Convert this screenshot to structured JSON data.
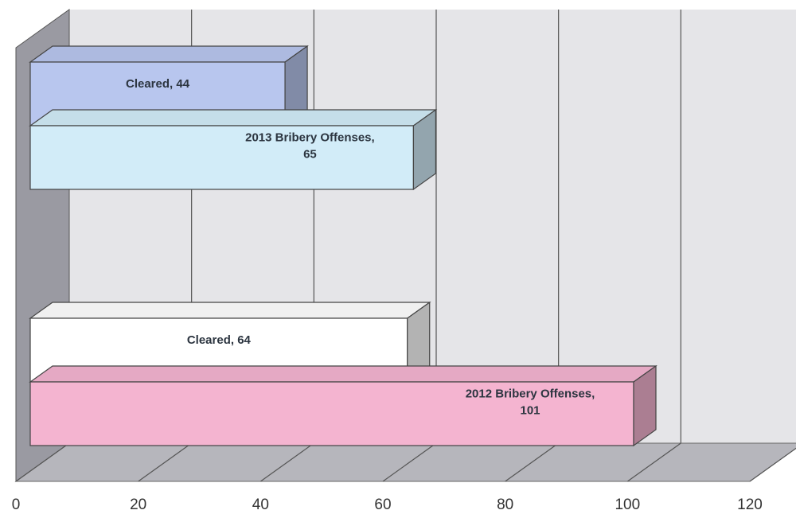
{
  "chart_data": {
    "type": "bar",
    "orientation": "horizontal",
    "three_d": true,
    "grid": true,
    "xlim": [
      0,
      120
    ],
    "x_ticks": [
      "0",
      "20",
      "40",
      "60",
      "80",
      "100",
      "120"
    ],
    "bars": [
      {
        "name": "Cleared",
        "value": 44,
        "label": [
          "Cleared, 44"
        ],
        "color": "#b8c6ee"
      },
      {
        "name": "2013 Bribery Offenses",
        "value": 65,
        "label": [
          "2013 Bribery Offenses,",
          "65"
        ],
        "color": "#d2ecf8"
      },
      {
        "name": "Cleared",
        "value": 64,
        "label": [
          "Cleared, 64"
        ],
        "color": "#ffffff"
      },
      {
        "name": "2012 Bribery Offenses",
        "value": 101,
        "label": [
          "2012 Bribery Offenses,",
          "101"
        ],
        "color": "#f4b4d0"
      }
    ]
  }
}
